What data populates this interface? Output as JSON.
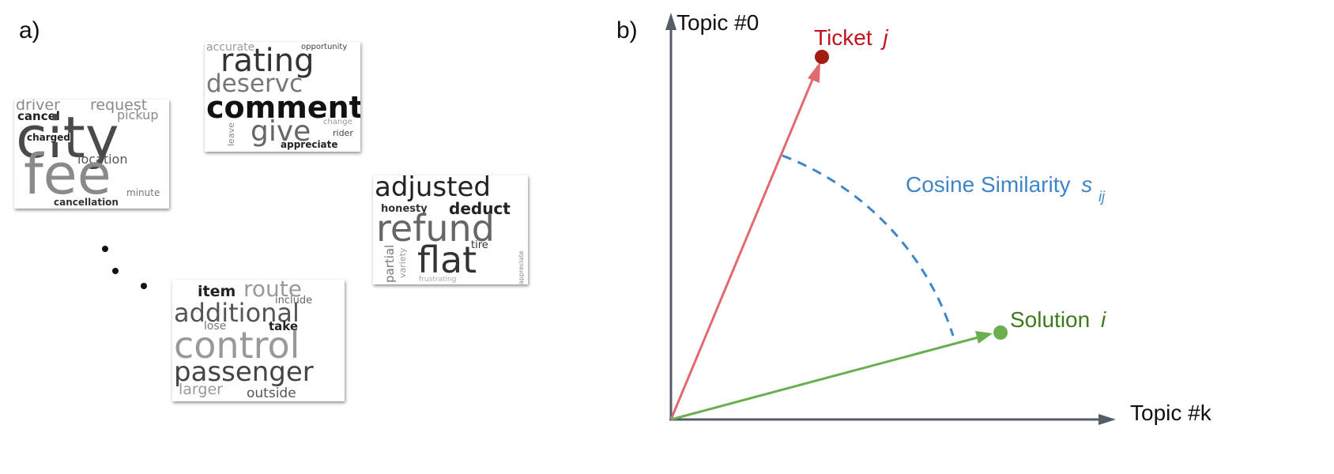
{
  "panel_a": {
    "label": "a)",
    "wordclouds": [
      {
        "words": [
          "driver",
          "request",
          "cancel",
          "pickup",
          "city",
          "charged",
          "location",
          "fee",
          "minute",
          "cancellation"
        ]
      },
      {
        "words": [
          "accurate",
          "opportunity",
          "rating",
          "deservc",
          "comment",
          "give",
          "leave",
          "change",
          "rider",
          "appreciate"
        ]
      },
      {
        "words": [
          "adjusted",
          "honesty",
          "deduct",
          "refund",
          "partial",
          "variety",
          "tire",
          "flat",
          "frustrating",
          "appreciate"
        ]
      },
      {
        "words": [
          "item",
          "route",
          "include",
          "additional",
          "lose",
          "take",
          "control",
          "passenger",
          "larger",
          "outside"
        ]
      }
    ]
  },
  "panel_b": {
    "label": "b)",
    "y_axis_label": "Topic #0",
    "x_axis_label": "Topic #k",
    "ticket_label": "Ticket",
    "ticket_var": "j",
    "solution_label": "Solution",
    "solution_var": "i",
    "similarity_label": "Cosine Similarity",
    "similarity_var": "s",
    "similarity_sub": "ij",
    "colors": {
      "axis": "#555d66",
      "ticket": "#e06a6f",
      "ticket_point": "#a31c14",
      "ticket_text": "#c0121f",
      "solution": "#6aaf4f",
      "solution_point": "#6aaf4f",
      "solution_text": "#3d7a1e",
      "similarity": "#3f86c8"
    }
  }
}
